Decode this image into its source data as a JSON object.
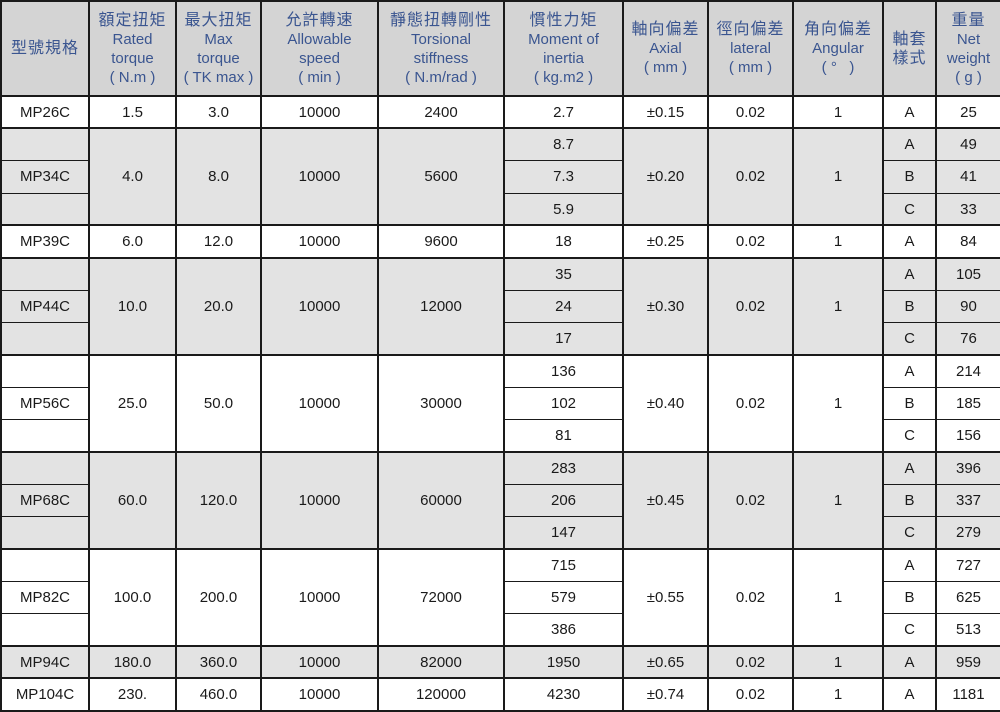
{
  "colors": {
    "border": "#1a1a1a",
    "header_bg": "#d4d4d4",
    "header_text": "#3a5590",
    "shaded_row_bg": "#e3e3e3",
    "body_text": "#1a1a1a"
  },
  "table": {
    "header": {
      "columns": [
        {
          "id": "model",
          "lines": [
            "型號規格"
          ]
        },
        {
          "id": "rated",
          "lines": [
            "額定扭矩",
            "Rated",
            "torque",
            "( N.m )"
          ]
        },
        {
          "id": "max",
          "lines": [
            "最大扭矩",
            "Max",
            "torque",
            "( TK max )"
          ]
        },
        {
          "id": "speed",
          "lines": [
            "允許轉速",
            "Allowable",
            "speed",
            "( min )"
          ]
        },
        {
          "id": "stiff",
          "lines": [
            "靜態扭轉剛性",
            "Torsional",
            "stiffness",
            "( N.m/rad )"
          ]
        },
        {
          "id": "inertia",
          "lines": [
            "慣性力矩",
            "Moment of",
            "inertia",
            "( kg.m2 )"
          ]
        },
        {
          "id": "axial",
          "lines": [
            "軸向偏差",
            "Axial",
            "( mm )"
          ]
        },
        {
          "id": "lateral",
          "lines": [
            "徑向偏差",
            "lateral",
            "( mm )"
          ]
        },
        {
          "id": "angular",
          "lines": [
            "角向偏差",
            "Angular",
            "( °   )"
          ]
        },
        {
          "id": "sleeve",
          "lines": [
            "軸套",
            "樣式"
          ]
        },
        {
          "id": "weight",
          "lines": [
            "重量",
            "Net",
            "weight",
            "( g )"
          ]
        }
      ]
    },
    "groups": [
      {
        "model": "MP26C",
        "shaded": false,
        "rated": "1.5",
        "max": "3.0",
        "speed": "10000",
        "stiff": "2400",
        "axial": "±0.15",
        "lateral": "0.02",
        "angular": "1",
        "variants": [
          {
            "inertia": "2.7",
            "sleeve": "A",
            "weight": "25"
          }
        ]
      },
      {
        "model": "MP34C",
        "shaded": true,
        "rated": "4.0",
        "max": "8.0",
        "speed": "10000",
        "stiff": "5600",
        "axial": "±0.20",
        "lateral": "0.02",
        "angular": "1",
        "variants": [
          {
            "inertia": "8.7",
            "sleeve": "A",
            "weight": "49"
          },
          {
            "inertia": "7.3",
            "sleeve": "B",
            "weight": "41"
          },
          {
            "inertia": "5.9",
            "sleeve": "C",
            "weight": "33"
          }
        ]
      },
      {
        "model": "MP39C",
        "shaded": false,
        "rated": "6.0",
        "max": "12.0",
        "speed": "10000",
        "stiff": "9600",
        "axial": "±0.25",
        "lateral": "0.02",
        "angular": "1",
        "variants": [
          {
            "inertia": "18",
            "sleeve": "A",
            "weight": "84"
          }
        ]
      },
      {
        "model": "MP44C",
        "shaded": true,
        "rated": "10.0",
        "max": "20.0",
        "speed": "10000",
        "stiff": "12000",
        "axial": "±0.30",
        "lateral": "0.02",
        "angular": "1",
        "variants": [
          {
            "inertia": "35",
            "sleeve": "A",
            "weight": "105"
          },
          {
            "inertia": "24",
            "sleeve": "B",
            "weight": "90"
          },
          {
            "inertia": "17",
            "sleeve": "C",
            "weight": "76"
          }
        ]
      },
      {
        "model": "MP56C",
        "shaded": false,
        "rated": "25.0",
        "max": "50.0",
        "speed": "10000",
        "stiff": "30000",
        "axial": "±0.40",
        "lateral": "0.02",
        "angular": "1",
        "variants": [
          {
            "inertia": "136",
            "sleeve": "A",
            "weight": "214"
          },
          {
            "inertia": "102",
            "sleeve": "B",
            "weight": "185"
          },
          {
            "inertia": "81",
            "sleeve": "C",
            "weight": "156"
          }
        ]
      },
      {
        "model": "MP68C",
        "shaded": true,
        "rated": "60.0",
        "max": "120.0",
        "speed": "10000",
        "stiff": "60000",
        "axial": "±0.45",
        "lateral": "0.02",
        "angular": "1",
        "variants": [
          {
            "inertia": "283",
            "sleeve": "A",
            "weight": "396"
          },
          {
            "inertia": "206",
            "sleeve": "B",
            "weight": "337"
          },
          {
            "inertia": "147",
            "sleeve": "C",
            "weight": "279"
          }
        ]
      },
      {
        "model": "MP82C",
        "shaded": false,
        "rated": "100.0",
        "max": "200.0",
        "speed": "10000",
        "stiff": "72000",
        "axial": "±0.55",
        "lateral": "0.02",
        "angular": "1",
        "variants": [
          {
            "inertia": "715",
            "sleeve": "A",
            "weight": "727"
          },
          {
            "inertia": "579",
            "sleeve": "B",
            "weight": "625"
          },
          {
            "inertia": "386",
            "sleeve": "C",
            "weight": "513"
          }
        ]
      },
      {
        "model": "MP94C",
        "shaded": true,
        "rated": "180.0",
        "max": "360.0",
        "speed": "10000",
        "stiff": "82000",
        "axial": "±0.65",
        "lateral": "0.02",
        "angular": "1",
        "variants": [
          {
            "inertia": "1950",
            "sleeve": "A",
            "weight": "959"
          }
        ]
      },
      {
        "model": "MP104C",
        "shaded": false,
        "rated": "230.",
        "max": "460.0",
        "speed": "10000",
        "stiff": "120000",
        "axial": "±0.74",
        "lateral": "0.02",
        "angular": "1",
        "variants": [
          {
            "inertia": "4230",
            "sleeve": "A",
            "weight": "1181"
          }
        ]
      }
    ]
  }
}
